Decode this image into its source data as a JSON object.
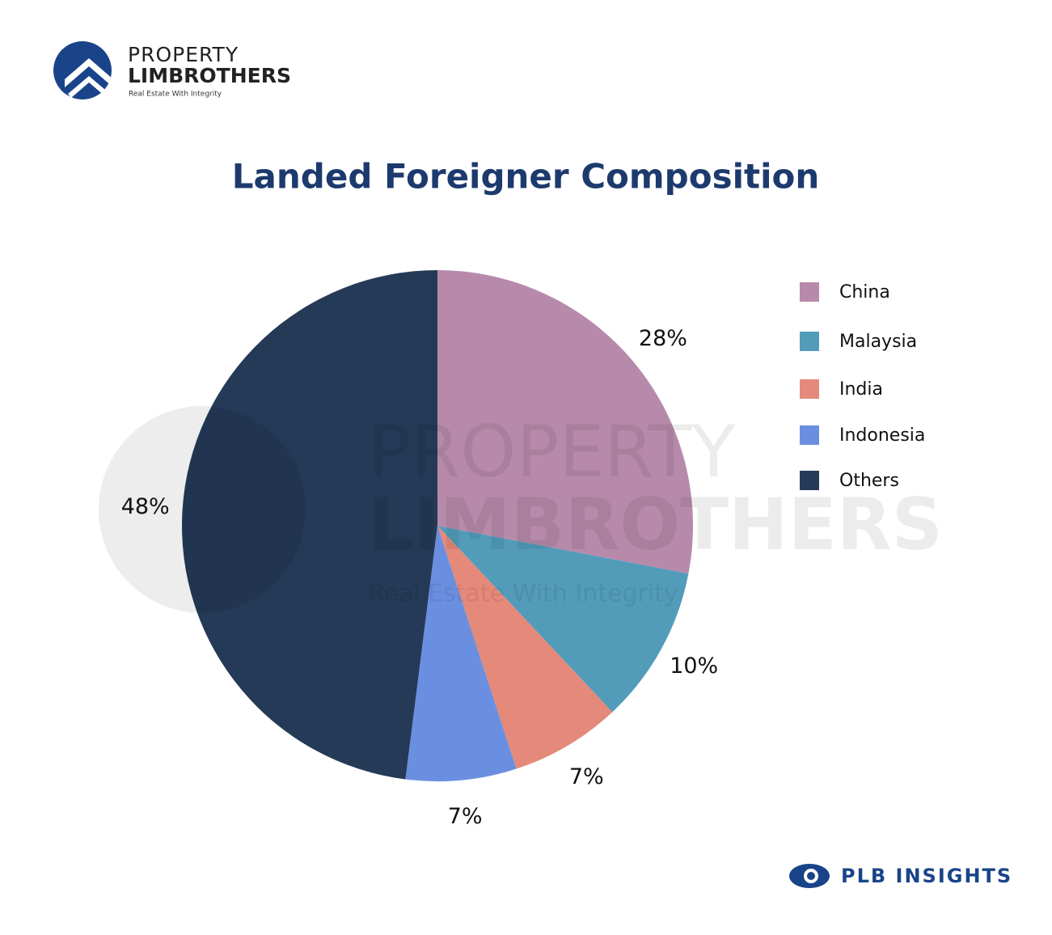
{
  "header": {
    "brand_top": "PROPERTY",
    "brand_bottom": "LIMBROTHERS",
    "tagline": "Real Estate With Integrity"
  },
  "chart_data": {
    "type": "pie",
    "title": "Landed Foreigner Composition",
    "categories": [
      "China",
      "Malaysia",
      "India",
      "Indonesia",
      "Others"
    ],
    "values": [
      28,
      10,
      7,
      7,
      48
    ],
    "value_labels": [
      "28%",
      "10%",
      "7%",
      "7%",
      "48%"
    ],
    "colors": [
      "#b78aab",
      "#529cba",
      "#e5897a",
      "#6b8fe0",
      "#243a57"
    ],
    "legend": "right"
  },
  "footer": {
    "brand": "PLB INSIGHTS"
  }
}
